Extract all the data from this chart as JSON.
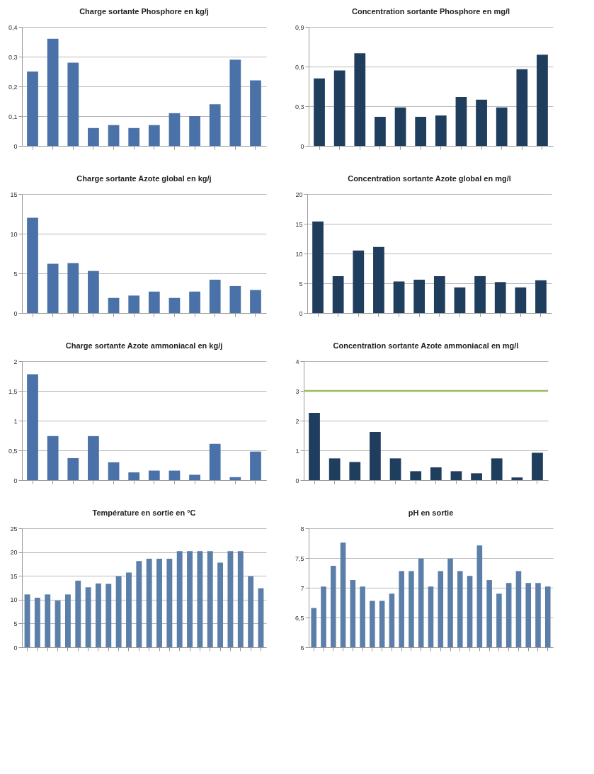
{
  "chart_data": [
    {
      "type": "bar",
      "title": "Charge sortante\nPhosphore en kg/j",
      "categories": [
        null,
        null,
        null,
        null,
        null,
        null,
        null,
        null,
        null,
        null,
        null,
        null
      ],
      "values": [
        0.25,
        0.36,
        0.28,
        0.06,
        0.07,
        0.06,
        0.07,
        0.11,
        0.1,
        0.14,
        0.29,
        0.22
      ],
      "color": "#4a72a8",
      "ylim": [
        0,
        0.4
      ],
      "yticks": [
        0,
        {
          "value": 0.1,
          "label": "0,1"
        },
        {
          "value": 0.2,
          "label": "0,2"
        },
        {
          "value": 0.3,
          "label": "0,3"
        },
        {
          "value": 0.4,
          "label": "0,4"
        }
      ],
      "grid": "y"
    },
    {
      "type": "bar",
      "title": "Concentration sortante Phosphore\nen mg/l",
      "categories": [
        null,
        null,
        null,
        null,
        null,
        null,
        null,
        null,
        null,
        null,
        null,
        null
      ],
      "values": [
        0.51,
        0.57,
        0.7,
        0.22,
        0.29,
        0.22,
        0.23,
        0.37,
        0.35,
        0.29,
        0.58,
        0.69
      ],
      "color": "#1f3d5c",
      "ylim": [
        0,
        0.9
      ],
      "yticks": [
        0,
        {
          "value": 0.3,
          "label": "0,3"
        },
        {
          "value": 0.6,
          "label": "0,6"
        },
        {
          "value": 0.9,
          "label": "0,9"
        }
      ],
      "grid": "y"
    },
    {
      "type": "bar",
      "title": "Charge sortante\nAzote global en kg/j",
      "categories": [
        null,
        null,
        null,
        null,
        null,
        null,
        null,
        null,
        null,
        null,
        null,
        null
      ],
      "values": [
        12.0,
        6.2,
        6.3,
        5.3,
        1.9,
        2.2,
        2.7,
        1.9,
        2.7,
        4.2,
        3.4,
        2.9
      ],
      "color": "#4a72a8",
      "ylim": [
        0,
        15
      ],
      "yticks": [
        0,
        5,
        10,
        15
      ],
      "grid": "y"
    },
    {
      "type": "bar",
      "title": "Concentration sortante Azote\nglobal en mg/l",
      "categories": [
        null,
        null,
        null,
        null,
        null,
        null,
        null,
        null,
        null,
        null,
        null,
        null
      ],
      "values": [
        15.4,
        6.2,
        10.5,
        11.1,
        5.3,
        5.6,
        6.2,
        4.3,
        6.2,
        5.2,
        4.3,
        5.5
      ],
      "color": "#1f3d5c",
      "ylim": [
        0,
        20
      ],
      "yticks": [
        0,
        5,
        10,
        15,
        20
      ],
      "grid": "y"
    },
    {
      "type": "bar",
      "title": "Charge sortante\nAzote ammoniacal en kg/j",
      "categories": [
        null,
        null,
        null,
        null,
        null,
        null,
        null,
        null,
        null,
        null,
        null,
        null
      ],
      "values": [
        1.78,
        0.74,
        0.37,
        0.74,
        0.3,
        0.13,
        0.16,
        0.16,
        0.09,
        0.61,
        0.05,
        0.48
      ],
      "color": "#4a72a8",
      "ylim": [
        0,
        2
      ],
      "yticks": [
        0,
        {
          "value": 0.5,
          "label": "0,5"
        },
        1,
        {
          "value": 1.5,
          "label": "1,5"
        },
        2
      ],
      "grid": "y"
    },
    {
      "type": "bar",
      "title": "Concentration sortante Azote\nammoniacal en mg/l",
      "categories": [
        null,
        null,
        null,
        null,
        null,
        null,
        null,
        null,
        null,
        null,
        null,
        null
      ],
      "values": [
        2.26,
        0.73,
        0.61,
        1.62,
        0.73,
        0.3,
        0.43,
        0.3,
        0.23,
        0.73,
        0.09,
        0.92
      ],
      "color": "#1f3d5c",
      "ylim": [
        0,
        4
      ],
      "yticks": [
        0,
        1,
        2,
        3,
        4
      ],
      "grid": "y",
      "ref_lines": [
        {
          "axis": "y",
          "value": 3,
          "color": "#9bbb59"
        }
      ]
    },
    {
      "type": "bar",
      "title": "Température en sortie en °C",
      "categories": [
        null,
        null,
        null,
        null,
        null,
        null,
        null,
        null,
        null,
        null,
        null,
        null,
        null,
        null,
        null,
        null,
        null,
        null,
        null,
        null,
        null,
        null,
        null,
        null
      ],
      "values": [
        11.1,
        10.4,
        11.1,
        9.8,
        11.1,
        14.0,
        12.6,
        13.4,
        13.3,
        14.9,
        15.7,
        18.1,
        18.6,
        18.6,
        18.6,
        20.2,
        20.2,
        20.2,
        20.2,
        17.8,
        20.2,
        20.2,
        14.9,
        12.4
      ],
      "color": "#5b7fa8",
      "ylim": [
        0,
        25
      ],
      "yticks": [
        0,
        5,
        10,
        15,
        20,
        25
      ],
      "grid": "y"
    },
    {
      "type": "bar",
      "title": "pH en sortie",
      "categories": [
        null,
        null,
        null,
        null,
        null,
        null,
        null,
        null,
        null,
        null,
        null,
        null,
        null,
        null,
        null,
        null,
        null,
        null,
        null,
        null,
        null,
        null,
        null,
        null,
        null
      ],
      "values": [
        6.66,
        7.02,
        7.37,
        7.76,
        7.13,
        7.02,
        6.78,
        6.78,
        6.9,
        7.28,
        7.28,
        7.49,
        7.02,
        7.28,
        7.49,
        7.28,
        7.2,
        7.71,
        7.13,
        6.9,
        7.08,
        7.28,
        7.08,
        7.08,
        7.02
      ],
      "color": "#5b7fa8",
      "ylim": [
        6,
        8
      ],
      "yticks": [
        6,
        {
          "value": 6.5,
          "label": "6,5"
        },
        7,
        {
          "value": 7.5,
          "label": "7,5"
        },
        8
      ],
      "grid": "y"
    }
  ]
}
